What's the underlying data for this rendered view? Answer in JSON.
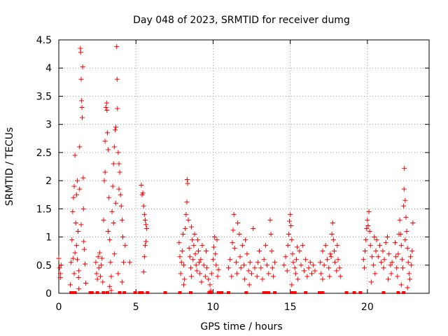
{
  "chart_data": {
    "type": "scatter",
    "title": "Day 048 of 2023, SRMTID for receiver dumg",
    "xlabel": "GPS time / hours",
    "ylabel": "SRMTID / TECUs",
    "xlim": [
      0,
      24
    ],
    "ylim": [
      0,
      4.5
    ],
    "xticks": [
      0,
      5,
      10,
      15,
      20
    ],
    "yticks": [
      0,
      0.5,
      1,
      1.5,
      2,
      2.5,
      3,
      3.5,
      4,
      4.5
    ],
    "grid": true,
    "marker": "+",
    "color": "#ff0000",
    "series": [
      {
        "points": [
          [
            0.0,
            0.62
          ],
          [
            0.05,
            0.45
          ],
          [
            0.1,
            0.35
          ],
          [
            0.15,
            0.5
          ],
          [
            0.1,
            0.28
          ],
          [
            0.75,
            0.15
          ],
          [
            0.8,
            0.55
          ],
          [
            0.85,
            0.95
          ],
          [
            0.9,
            1.45
          ],
          [
            0.95,
            1.7
          ],
          [
            1.0,
            1.9
          ],
          [
            1.05,
            2.45
          ],
          [
            1.1,
            1.25
          ],
          [
            1.15,
            0.85
          ],
          [
            1.2,
            0.6
          ],
          [
            1.25,
            1.1
          ],
          [
            1.3,
            0.4
          ],
          [
            1.35,
            2.6
          ],
          [
            1.4,
            4.35
          ],
          [
            1.42,
            4.28
          ],
          [
            1.45,
            3.8
          ],
          [
            1.48,
            3.42
          ],
          [
            1.5,
            3.3
          ],
          [
            1.55,
            4.02
          ],
          [
            1.52,
            3.12
          ],
          [
            1.58,
            2.05
          ],
          [
            1.6,
            1.5
          ],
          [
            1.62,
            0.92
          ],
          [
            1.65,
            0.78
          ],
          [
            1.7,
            0.52
          ],
          [
            1.3,
            0.08
          ],
          [
            1.75,
            0.18
          ],
          [
            1.0,
            0.35
          ],
          [
            1.05,
            0.72
          ],
          [
            1.15,
            1.75
          ],
          [
            1.2,
            2.0
          ],
          [
            1.35,
            1.85
          ],
          [
            1.45,
            1.22
          ],
          [
            1.28,
            0.28
          ],
          [
            0.92,
            0.62
          ],
          [
            2.4,
            0.55
          ],
          [
            2.45,
            0.35
          ],
          [
            2.5,
            0.25
          ],
          [
            2.55,
            0.65
          ],
          [
            2.6,
            0.45
          ],
          [
            2.65,
            0.72
          ],
          [
            2.7,
            0.3
          ],
          [
            2.75,
            0.5
          ],
          [
            2.8,
            0.62
          ],
          [
            2.85,
            0.2
          ],
          [
            2.9,
            1.3
          ],
          [
            2.95,
            2.0
          ],
          [
            3.0,
            2.7
          ],
          [
            3.05,
            3.3
          ],
          [
            3.1,
            3.38
          ],
          [
            3.12,
            3.25
          ],
          [
            3.15,
            2.85
          ],
          [
            3.2,
            2.55
          ],
          [
            3.25,
            1.7
          ],
          [
            3.3,
            0.95
          ],
          [
            3.35,
            0.55
          ],
          [
            3.4,
            0.3
          ],
          [
            3.45,
            1.45
          ],
          [
            3.5,
            1.9
          ],
          [
            3.55,
            2.3
          ],
          [
            3.6,
            2.6
          ],
          [
            3.65,
            2.9
          ],
          [
            3.7,
            2.95
          ],
          [
            3.75,
            4.38
          ],
          [
            3.78,
            3.8
          ],
          [
            3.8,
            3.28
          ],
          [
            3.85,
            2.5
          ],
          [
            3.9,
            2.3
          ],
          [
            3.95,
            2.15
          ],
          [
            4.0,
            1.75
          ],
          [
            4.05,
            1.55
          ],
          [
            4.1,
            1.3
          ],
          [
            4.15,
            1.0
          ],
          [
            4.2,
            0.55
          ],
          [
            3.3,
            0.12
          ],
          [
            3.4,
            0.05
          ],
          [
            3.6,
            0.7
          ],
          [
            3.7,
            1.6
          ],
          [
            3.85,
            0.35
          ],
          [
            4.1,
            0.2
          ],
          [
            3.2,
            1.1
          ],
          [
            3.0,
            2.15
          ],
          [
            3.55,
            1.25
          ],
          [
            3.9,
            1.85
          ],
          [
            4.3,
            0.85
          ],
          [
            4.6,
            0.55
          ],
          [
            5.35,
            1.92
          ],
          [
            5.4,
            1.75
          ],
          [
            5.45,
            1.78
          ],
          [
            5.5,
            1.55
          ],
          [
            5.55,
            1.4
          ],
          [
            5.6,
            1.3
          ],
          [
            5.65,
            1.22
          ],
          [
            5.7,
            1.15
          ],
          [
            5.55,
            0.65
          ],
          [
            5.6,
            0.85
          ],
          [
            5.5,
            0.38
          ],
          [
            5.65,
            0.92
          ],
          [
            7.8,
            0.9
          ],
          [
            7.85,
            0.65
          ],
          [
            7.9,
            0.35
          ],
          [
            7.95,
            0.55
          ],
          [
            8.0,
            0.75
          ],
          [
            8.05,
            1.05
          ],
          [
            8.1,
            0.5
          ],
          [
            8.15,
            0.25
          ],
          [
            8.2,
            1.15
          ],
          [
            8.25,
            1.4
          ],
          [
            8.3,
            1.62
          ],
          [
            8.32,
            2.02
          ],
          [
            8.35,
            1.95
          ],
          [
            8.4,
            1.3
          ],
          [
            8.45,
            0.8
          ],
          [
            8.5,
            0.65
          ],
          [
            8.55,
            0.45
          ],
          [
            8.6,
            0.3
          ],
          [
            8.65,
            0.95
          ],
          [
            8.7,
            0.6
          ],
          [
            8.75,
            0.85
          ],
          [
            8.8,
            1.05
          ],
          [
            8.85,
            0.7
          ],
          [
            8.9,
            0.5
          ],
          [
            8.95,
            0.4
          ],
          [
            9.0,
            0.95
          ],
          [
            9.05,
            0.75
          ],
          [
            9.1,
            0.55
          ],
          [
            9.15,
            0.35
          ],
          [
            9.2,
            0.6
          ],
          [
            9.3,
            0.85
          ],
          [
            9.4,
            0.5
          ],
          [
            9.5,
            0.3
          ],
          [
            9.6,
            0.45
          ],
          [
            9.7,
            0.25
          ],
          [
            9.8,
            0.15
          ],
          [
            9.85,
            0.05
          ],
          [
            9.9,
            0.35
          ],
          [
            10.0,
            0.6
          ],
          [
            10.05,
            0.82
          ],
          [
            10.1,
            1.0
          ],
          [
            10.15,
            0.7
          ],
          [
            10.2,
            0.5
          ],
          [
            10.3,
            0.3
          ],
          [
            10.35,
            0.42
          ],
          [
            8.1,
            0.15
          ],
          [
            8.6,
            1.18
          ],
          [
            9.25,
            0.2
          ],
          [
            9.55,
            0.75
          ],
          [
            10.25,
            0.95
          ],
          [
            11.0,
            0.45
          ],
          [
            11.1,
            0.6
          ],
          [
            11.2,
            0.3
          ],
          [
            11.25,
            0.9
          ],
          [
            11.3,
            1.12
          ],
          [
            11.35,
            1.4
          ],
          [
            11.4,
            0.8
          ],
          [
            11.5,
            0.55
          ],
          [
            11.55,
            0.35
          ],
          [
            11.6,
            1.25
          ],
          [
            11.7,
            1.05
          ],
          [
            11.75,
            0.65
          ],
          [
            11.8,
            0.45
          ],
          [
            11.9,
            0.85
          ],
          [
            12.0,
            0.5
          ],
          [
            12.05,
            0.25
          ],
          [
            12.1,
            0.95
          ],
          [
            12.2,
            0.7
          ],
          [
            12.3,
            0.4
          ],
          [
            12.35,
            0.15
          ],
          [
            12.4,
            0.55
          ],
          [
            12.5,
            0.35
          ],
          [
            12.6,
            1.15
          ],
          [
            12.7,
            0.45
          ],
          [
            12.85,
            0.3
          ],
          [
            12.9,
            0.55
          ],
          [
            13.0,
            0.75
          ],
          [
            13.1,
            0.45
          ],
          [
            13.2,
            0.25
          ],
          [
            13.3,
            0.6
          ],
          [
            13.4,
            0.85
          ],
          [
            13.5,
            0.5
          ],
          [
            13.6,
            0.35
          ],
          [
            13.7,
            1.3
          ],
          [
            13.75,
            1.05
          ],
          [
            13.8,
            0.75
          ],
          [
            13.85,
            0.45
          ],
          [
            13.9,
            0.3
          ],
          [
            14.0,
            0.55
          ],
          [
            14.6,
            0.5
          ],
          [
            14.7,
            0.65
          ],
          [
            14.8,
            0.4
          ],
          [
            14.85,
            0.85
          ],
          [
            14.9,
            1.05
          ],
          [
            14.95,
            1.28
          ],
          [
            15.0,
            1.4
          ],
          [
            15.05,
            1.2
          ],
          [
            15.1,
            0.95
          ],
          [
            15.15,
            0.7
          ],
          [
            15.2,
            0.55
          ],
          [
            15.3,
            0.45
          ],
          [
            15.35,
            0.35
          ],
          [
            15.4,
            0.6
          ],
          [
            15.5,
            0.25
          ],
          [
            15.6,
            0.75
          ],
          [
            15.7,
            0.5
          ],
          [
            15.8,
            0.85
          ],
          [
            15.9,
            0.4
          ],
          [
            16.0,
            0.6
          ],
          [
            16.1,
            0.3
          ],
          [
            16.2,
            0.45
          ],
          [
            16.3,
            0.55
          ],
          [
            16.4,
            0.35
          ],
          [
            16.5,
            0.5
          ],
          [
            16.6,
            0.4
          ],
          [
            15.1,
            0.15
          ],
          [
            15.45,
            0.82
          ],
          [
            16.95,
            0.55
          ],
          [
            17.0,
            0.35
          ],
          [
            17.1,
            0.75
          ],
          [
            17.2,
            0.5
          ],
          [
            17.3,
            0.85
          ],
          [
            17.4,
            0.6
          ],
          [
            17.5,
            0.45
          ],
          [
            17.55,
            0.3
          ],
          [
            17.6,
            0.7
          ],
          [
            17.7,
            1.05
          ],
          [
            17.75,
            1.25
          ],
          [
            17.8,
            0.95
          ],
          [
            17.85,
            0.75
          ],
          [
            17.9,
            0.55
          ],
          [
            18.0,
            0.4
          ],
          [
            18.05,
            0.85
          ],
          [
            18.1,
            0.6
          ],
          [
            18.2,
            0.45
          ],
          [
            18.25,
            0.3
          ],
          [
            17.1,
            0.25
          ],
          [
            17.65,
            0.65
          ],
          [
            19.75,
            0.6
          ],
          [
            19.8,
            0.45
          ],
          [
            19.85,
            0.75
          ],
          [
            19.9,
            0.95
          ],
          [
            19.95,
            1.15
          ],
          [
            20.0,
            1.3
          ],
          [
            20.05,
            1.2
          ],
          [
            20.1,
            1.45
          ],
          [
            20.15,
            1.1
          ],
          [
            20.2,
            0.85
          ],
          [
            20.3,
            0.65
          ],
          [
            20.4,
            0.5
          ],
          [
            20.5,
            0.35
          ],
          [
            20.55,
            0.75
          ],
          [
            20.6,
            0.95
          ],
          [
            20.7,
            0.65
          ],
          [
            20.8,
            0.85
          ],
          [
            20.9,
            0.55
          ],
          [
            21.0,
            0.75
          ],
          [
            21.05,
            0.45
          ],
          [
            21.1,
            0.6
          ],
          [
            21.2,
            0.9
          ],
          [
            21.3,
            1.0
          ],
          [
            21.4,
            0.7
          ],
          [
            21.5,
            0.5
          ],
          [
            21.55,
            0.35
          ],
          [
            21.6,
            0.55
          ],
          [
            20.25,
            0.2
          ],
          [
            20.45,
            1.0
          ],
          [
            21.35,
            0.25
          ],
          [
            21.8,
            0.9
          ],
          [
            21.85,
            0.65
          ],
          [
            21.9,
            0.45
          ],
          [
            21.95,
            0.3
          ],
          [
            22.0,
            0.7
          ],
          [
            22.05,
            1.05
          ],
          [
            22.1,
            1.3
          ],
          [
            22.15,
            1.05
          ],
          [
            22.2,
            0.85
          ],
          [
            22.25,
            0.6
          ],
          [
            22.3,
            0.45
          ],
          [
            22.35,
            1.55
          ],
          [
            22.38,
            1.85
          ],
          [
            22.4,
            2.22
          ],
          [
            22.45,
            1.65
          ],
          [
            22.5,
            1.35
          ],
          [
            22.55,
            1.1
          ],
          [
            22.6,
            0.8
          ],
          [
            22.65,
            0.55
          ],
          [
            22.7,
            0.35
          ],
          [
            22.75,
            0.25
          ],
          [
            22.8,
            0.65
          ],
          [
            22.85,
            0.5
          ],
          [
            22.9,
            0.75
          ],
          [
            22.95,
            1.25
          ],
          [
            22.6,
            0.1
          ],
          [
            22.2,
            0.15
          ],
          [
            22.45,
            0.95
          ]
        ]
      }
    ],
    "zero_points_x": [
      0.8,
      0.85,
      1.05,
      2.05,
      2.15,
      2.5,
      2.9,
      3.15,
      3.95,
      4.25,
      4.95,
      5.25,
      5.4,
      5.75,
      6.9,
      7.85,
      8.55,
      9.75,
      9.85,
      10.35,
      10.55,
      11.0,
      12.15,
      13.3,
      13.5,
      13.6,
      14.0,
      15.1,
      15.3,
      16.0,
      16.9,
      17.1,
      18.65,
      19.15,
      19.55,
      21.05,
      22.0,
      22.35
    ]
  }
}
